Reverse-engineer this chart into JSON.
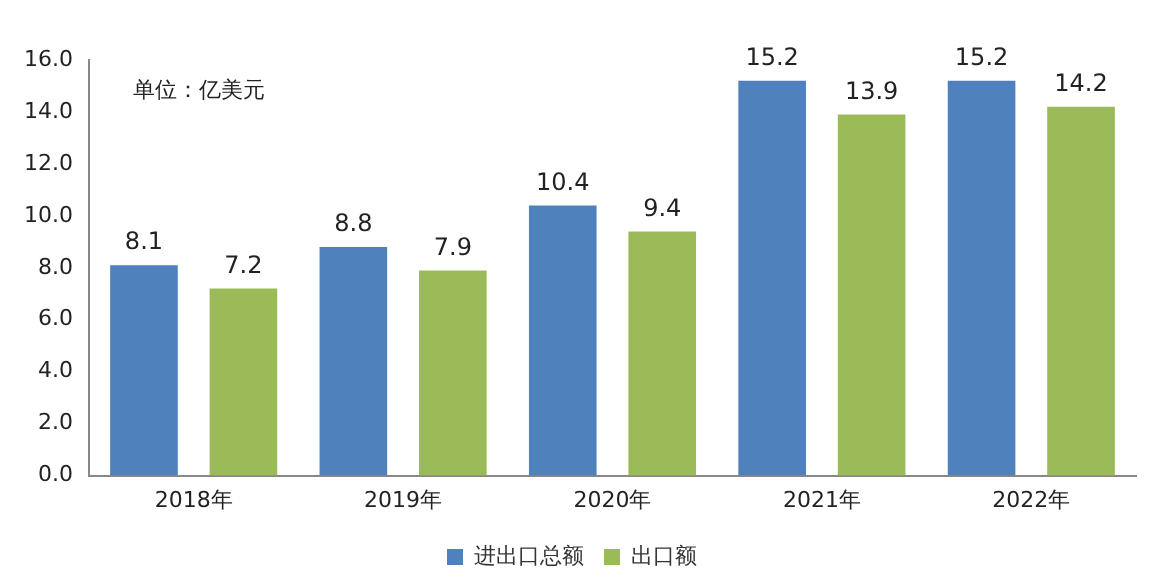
{
  "chart_data": {
    "type": "bar",
    "categories": [
      "2018年",
      "2019年",
      "2020年",
      "2021年",
      "2022年"
    ],
    "series": [
      {
        "name": "进出口总额",
        "color": "#4f81bd",
        "values": [
          8.1,
          8.8,
          10.4,
          15.2,
          15.2
        ]
      },
      {
        "name": "出口额",
        "color": "#9bbb59",
        "values": [
          7.2,
          7.9,
          9.4,
          13.9,
          14.2
        ]
      }
    ],
    "ylim": [
      0,
      16
    ],
    "yticks": [
      {
        "value": 0,
        "label": "0.0"
      },
      {
        "value": 2,
        "label": "2.0"
      },
      {
        "value": 4,
        "label": "4.0"
      },
      {
        "value": 6,
        "label": "6.0"
      },
      {
        "value": 8,
        "label": "8.0"
      },
      {
        "value": 10,
        "label": "10.0"
      },
      {
        "value": 12,
        "label": "12.0"
      },
      {
        "value": 14,
        "label": "14.0"
      },
      {
        "value": 16,
        "label": "16.0"
      }
    ],
    "annotations": [
      "单位：亿美元"
    ],
    "data_labels": true,
    "grid": false,
    "legend": "bottom"
  }
}
